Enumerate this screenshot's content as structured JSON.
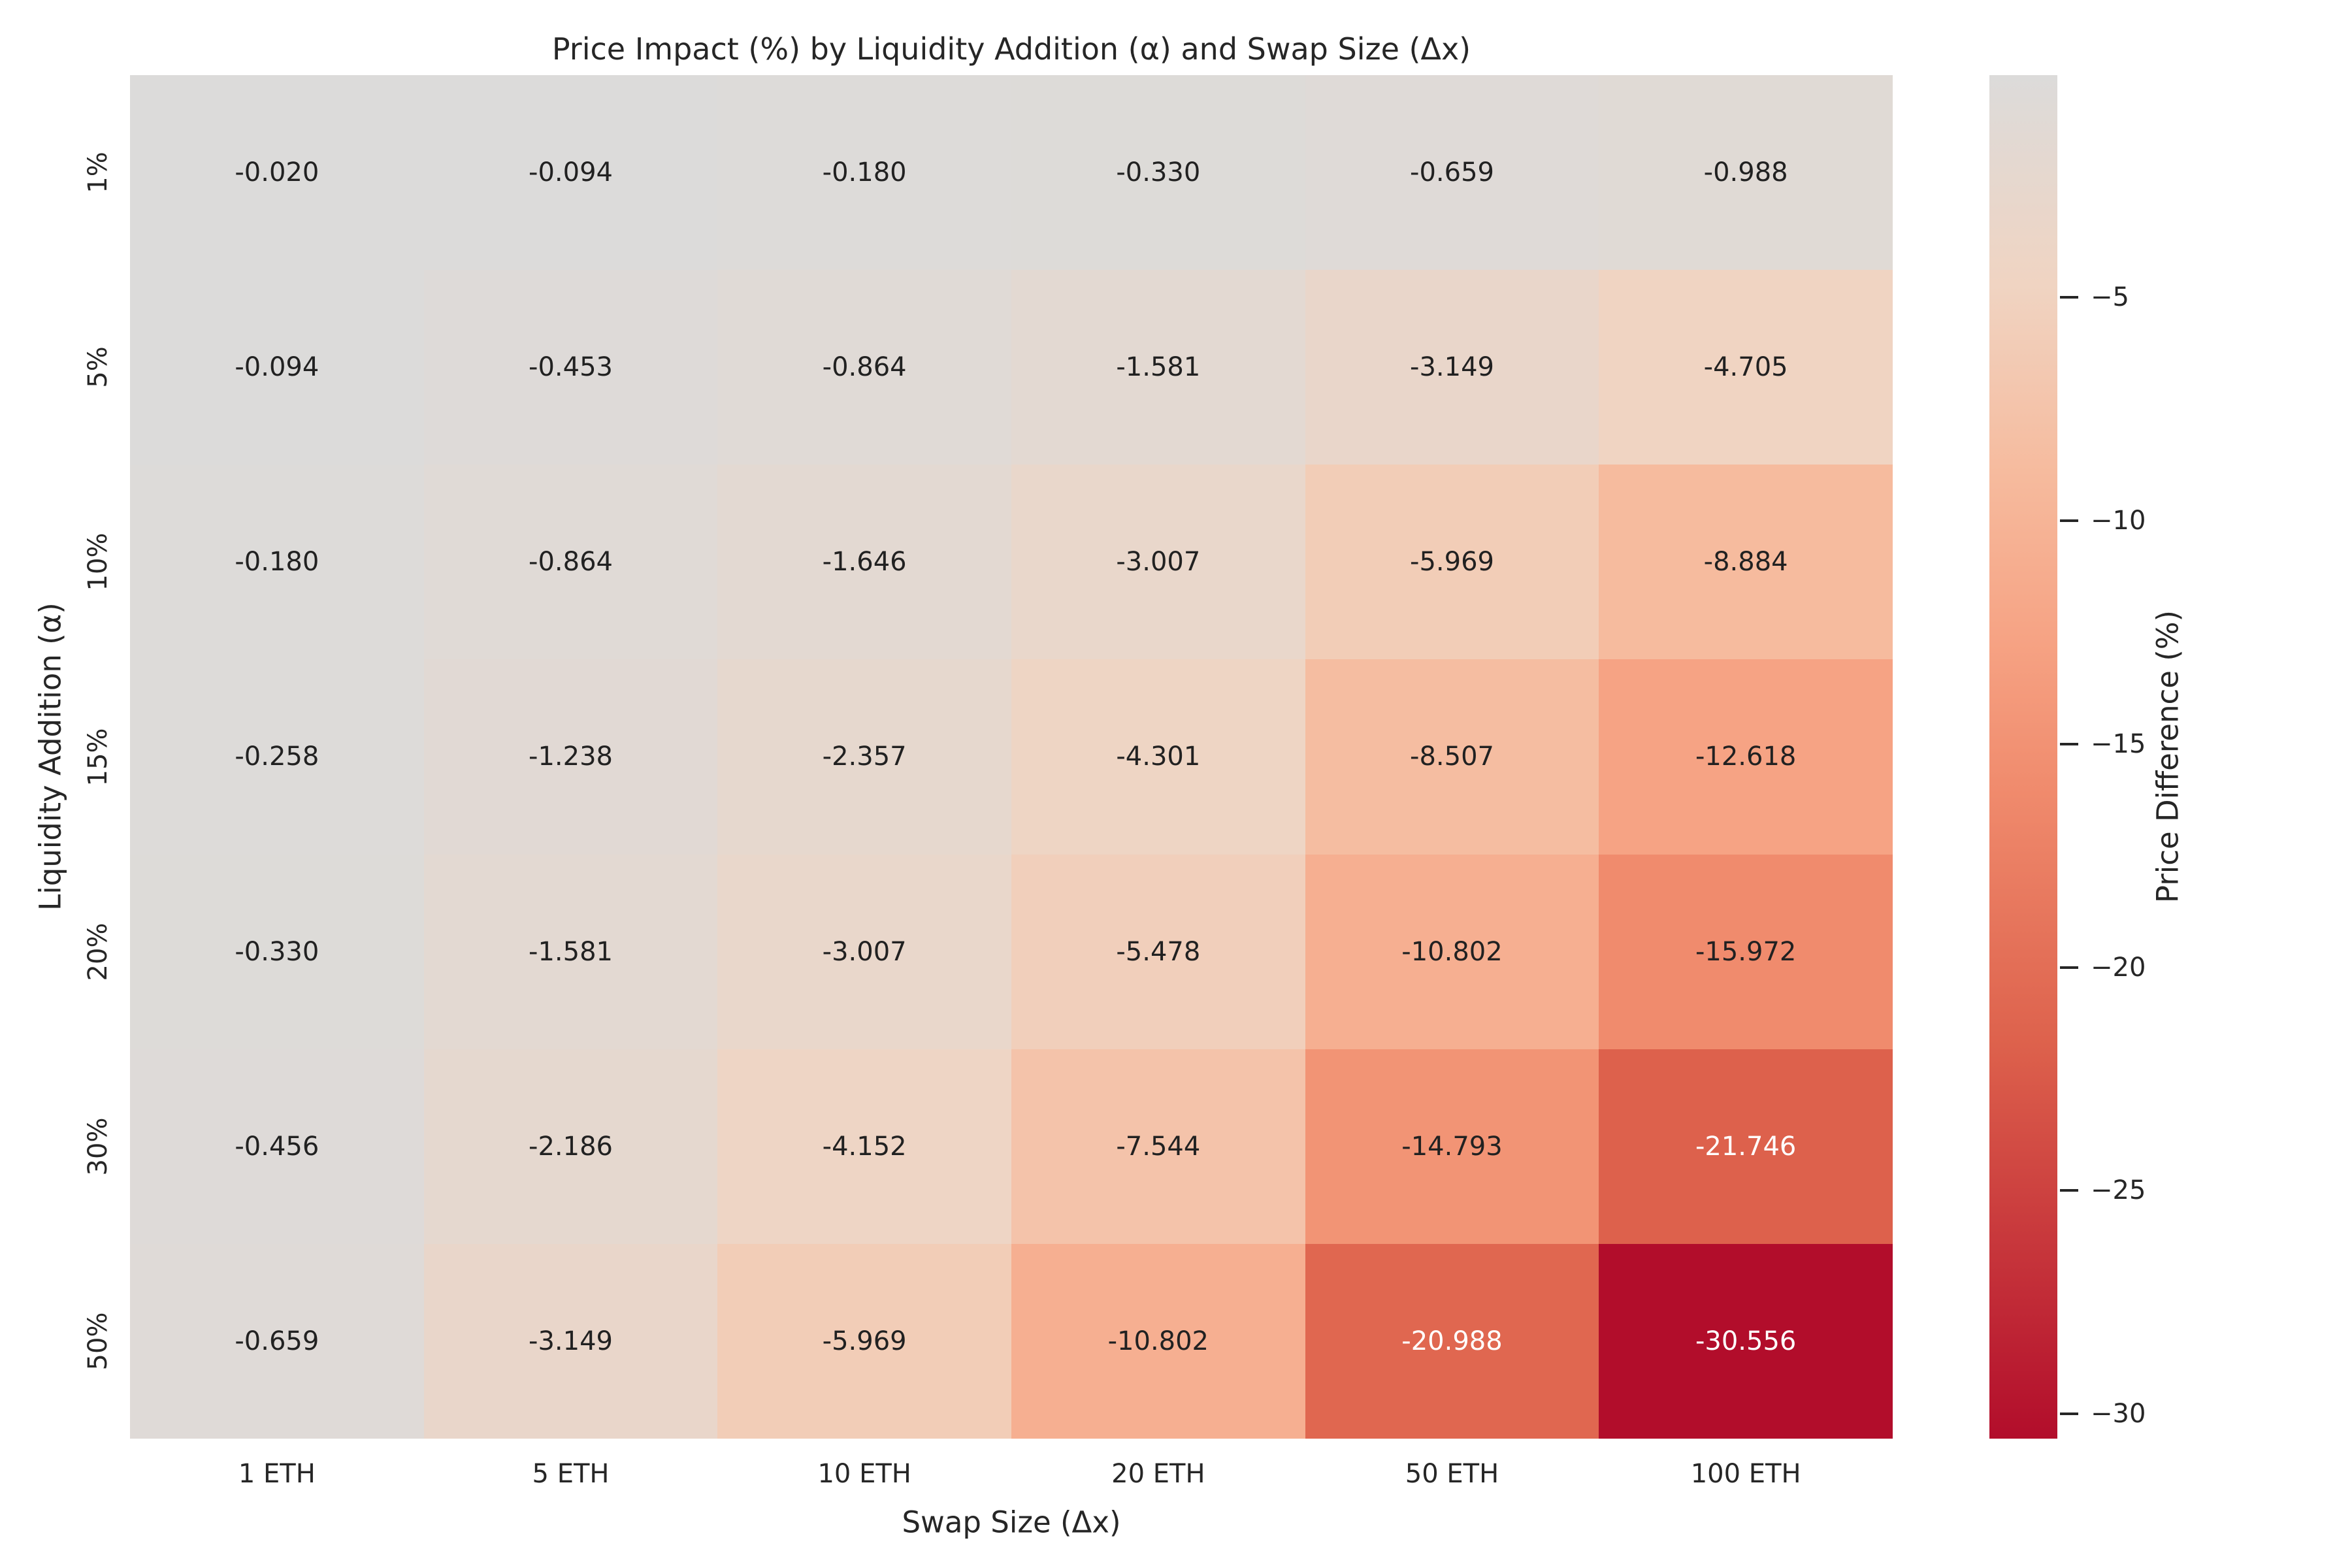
{
  "chart_data": {
    "type": "heatmap",
    "title": "Price Impact (%) by Liquidity Addition (α) and Swap Size (Δx)",
    "xlabel": "Swap Size (Δx)",
    "ylabel": "Liquidity Addition (α)",
    "x_categories": [
      "1 ETH",
      "5 ETH",
      "10 ETH",
      "20 ETH",
      "50 ETH",
      "100 ETH"
    ],
    "y_categories": [
      "1%",
      "5%",
      "10%",
      "15%",
      "20%",
      "30%",
      "50%"
    ],
    "cell_labels": [
      [
        "-0.020",
        "-0.094",
        "-0.180",
        "-0.330",
        "-0.659",
        "-0.988"
      ],
      [
        "-0.094",
        "-0.453",
        "-0.864",
        "-1.581",
        "-3.149",
        "-4.705"
      ],
      [
        "-0.180",
        "-0.864",
        "-1.646",
        "-3.007",
        "-5.969",
        "-8.884"
      ],
      [
        "-0.258",
        "-1.238",
        "-2.357",
        "-4.301",
        "-8.507",
        "-12.618"
      ],
      [
        "-0.330",
        "-1.581",
        "-3.007",
        "-5.478",
        "-10.802",
        "-15.972"
      ],
      [
        "-0.456",
        "-2.186",
        "-4.152",
        "-7.544",
        "-14.793",
        "-21.746"
      ],
      [
        "-0.659",
        "-3.149",
        "-5.969",
        "-10.802",
        "-20.988",
        "-30.556"
      ]
    ],
    "values": [
      [
        -0.02,
        -0.094,
        -0.18,
        -0.33,
        -0.659,
        -0.988
      ],
      [
        -0.094,
        -0.453,
        -0.864,
        -1.581,
        -3.149,
        -4.705
      ],
      [
        -0.18,
        -0.864,
        -1.646,
        -3.007,
        -5.969,
        -8.884
      ],
      [
        -0.258,
        -1.238,
        -2.357,
        -4.301,
        -8.507,
        -12.618
      ],
      [
        -0.33,
        -1.581,
        -3.007,
        -5.478,
        -10.802,
        -15.972
      ],
      [
        -0.456,
        -2.186,
        -4.152,
        -7.544,
        -14.793,
        -21.746
      ],
      [
        -0.659,
        -3.149,
        -5.969,
        -10.802,
        -20.988,
        -30.556
      ]
    ],
    "colorbar": {
      "label": "Price Difference (%)",
      "tick_labels": [
        "−5",
        "−10",
        "−15",
        "−20",
        "−25",
        "−30"
      ],
      "tick_values": [
        -5,
        -10,
        -15,
        -20,
        -25,
        -30
      ],
      "vmax": -0.02,
      "vmin": -30.556
    },
    "colors": {
      "annotation_dark": "#212121",
      "annotation_light": "#ffffff",
      "axis_text": "#262626",
      "colormap_stops": [
        {
          "t": 0.0,
          "hex": "#dcdbda"
        },
        {
          "t": 0.154,
          "hex": "#f0d4c2"
        },
        {
          "t": 0.291,
          "hex": "#f6bb9e"
        },
        {
          "t": 0.413,
          "hex": "#f6a384"
        },
        {
          "t": 0.523,
          "hex": "#f08b6d"
        },
        {
          "t": 0.712,
          "hex": "#dd614c"
        },
        {
          "t": 1.0,
          "hex": "#b20d2b"
        }
      ]
    },
    "layout": {
      "grid_on": false,
      "colorbar_position": "right",
      "annotations_on": true
    }
  }
}
